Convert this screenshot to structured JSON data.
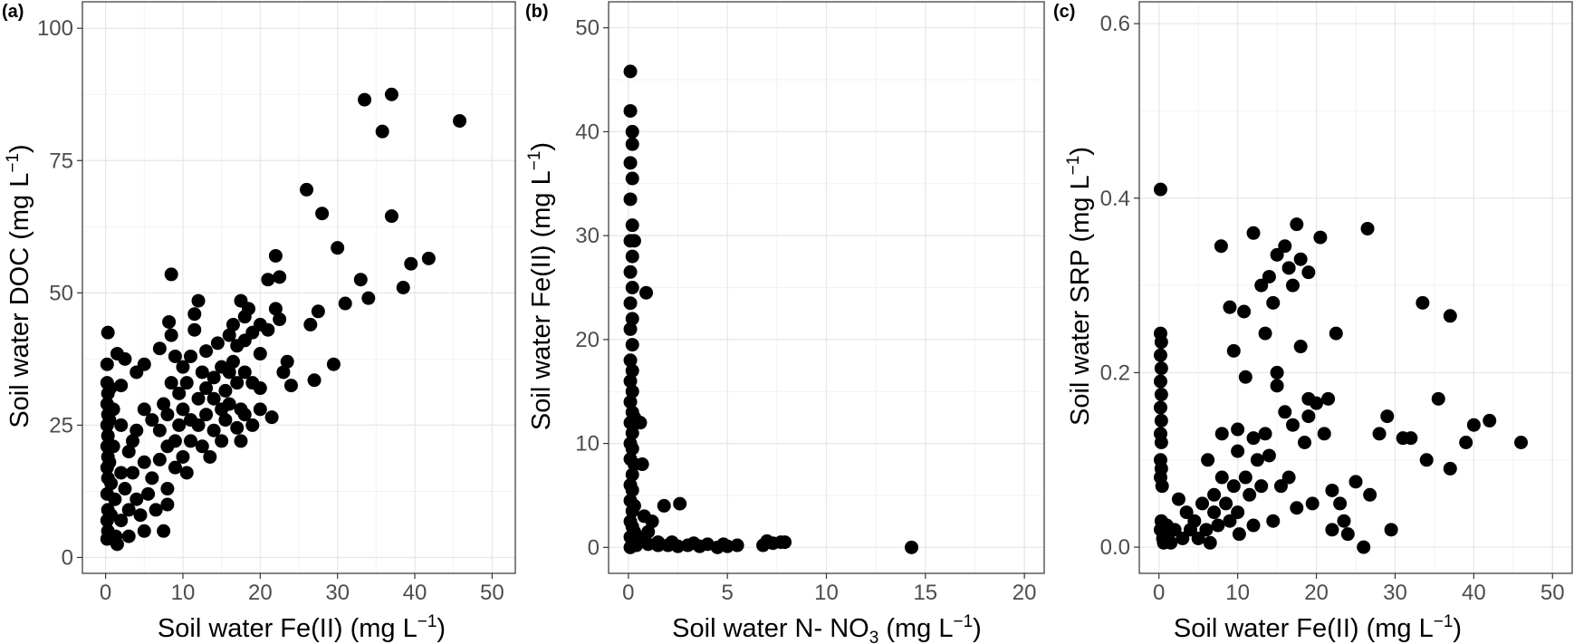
{
  "chart_data": [
    {
      "type": "scatter",
      "panel_label": "(a)",
      "title": "",
      "xlabel": "Soil water Fe(II) (mg  L",
      "xlabel_sup": "−1",
      "xlabel_tail": ")",
      "ylabel": "Soil water DOC (mg  L",
      "ylabel_sup": "−1",
      "ylabel_tail": ")",
      "xlim": [
        -3,
        53
      ],
      "ylim": [
        -3,
        105
      ],
      "xticks": [
        0,
        10,
        20,
        30,
        40,
        50
      ],
      "yticks": [
        0,
        25,
        50,
        75,
        100
      ],
      "xtick_labels": [
        "0",
        "10",
        "20",
        "30",
        "40",
        "50"
      ],
      "ytick_labels": [
        "0",
        "25",
        "50",
        "75",
        "100"
      ],
      "grid": true,
      "legend": "none",
      "marker_color": "#000000",
      "points": [
        [
          0.3,
          42.5
        ],
        [
          0.2,
          36.5
        ],
        [
          0.2,
          33
        ],
        [
          0.3,
          31
        ],
        [
          0.2,
          29
        ],
        [
          0.3,
          27
        ],
        [
          0.2,
          25
        ],
        [
          0.3,
          23
        ],
        [
          0.2,
          21
        ],
        [
          0.3,
          19
        ],
        [
          0.2,
          17
        ],
        [
          0.3,
          15
        ],
        [
          0.2,
          12
        ],
        [
          0.3,
          9
        ],
        [
          0.2,
          7
        ],
        [
          0.3,
          5
        ],
        [
          0.2,
          3.5
        ],
        [
          0.5,
          26
        ],
        [
          0.5,
          18
        ],
        [
          0.6,
          32
        ],
        [
          0.7,
          14
        ],
        [
          0.7,
          8
        ],
        [
          1,
          28
        ],
        [
          1,
          21
        ],
        [
          1.2,
          11
        ],
        [
          1.3,
          4
        ],
        [
          1.5,
          38.5
        ],
        [
          1.5,
          2.5
        ],
        [
          2,
          32.5
        ],
        [
          2,
          25
        ],
        [
          2,
          16
        ],
        [
          2,
          7
        ],
        [
          2.5,
          37.5
        ],
        [
          2.5,
          13
        ],
        [
          3,
          20
        ],
        [
          3,
          9
        ],
        [
          3,
          4
        ],
        [
          3.5,
          22
        ],
        [
          3.5,
          16
        ],
        [
          4,
          35
        ],
        [
          4,
          24
        ],
        [
          4,
          11
        ],
        [
          4.5,
          8
        ],
        [
          5,
          36.5
        ],
        [
          5,
          28
        ],
        [
          5,
          18
        ],
        [
          5,
          5
        ],
        [
          5.5,
          12
        ],
        [
          6,
          26
        ],
        [
          6,
          15
        ],
        [
          6.5,
          9
        ],
        [
          7,
          39.5
        ],
        [
          7,
          24
        ],
        [
          7,
          18.5
        ],
        [
          7.5,
          5
        ],
        [
          7.5,
          29
        ],
        [
          8,
          27
        ],
        [
          8,
          21
        ],
        [
          8,
          13
        ],
        [
          8,
          10
        ],
        [
          8.2,
          44.5
        ],
        [
          8.5,
          53.5
        ],
        [
          8.5,
          33
        ],
        [
          8.5,
          42
        ],
        [
          9,
          38
        ],
        [
          9,
          22
        ],
        [
          9,
          17
        ],
        [
          9.5,
          31
        ],
        [
          9.5,
          25
        ],
        [
          10,
          36
        ],
        [
          10,
          19
        ],
        [
          10,
          28
        ],
        [
          10.5,
          16
        ],
        [
          10.5,
          33
        ],
        [
          11,
          22
        ],
        [
          11,
          26
        ],
        [
          11,
          38
        ],
        [
          11.5,
          43
        ],
        [
          11.5,
          46
        ],
        [
          12,
          48.5
        ],
        [
          12,
          30
        ],
        [
          12,
          25
        ],
        [
          12.5,
          35
        ],
        [
          12.5,
          21
        ],
        [
          13,
          39
        ],
        [
          13,
          32
        ],
        [
          13,
          27
        ],
        [
          13.5,
          19
        ],
        [
          14,
          34
        ],
        [
          14,
          24
        ],
        [
          14,
          30
        ],
        [
          14.5,
          40.5
        ],
        [
          15,
          36
        ],
        [
          15,
          28
        ],
        [
          15,
          22
        ],
        [
          15.5,
          31.5
        ],
        [
          15.5,
          26
        ],
        [
          16,
          42
        ],
        [
          16,
          35
        ],
        [
          16,
          29
        ],
        [
          16.5,
          44
        ],
        [
          16.5,
          37
        ],
        [
          17,
          40
        ],
        [
          17,
          33
        ],
        [
          17,
          24.5
        ],
        [
          17.5,
          48.5
        ],
        [
          17.5,
          28
        ],
        [
          17.5,
          22
        ],
        [
          18,
          45.5
        ],
        [
          18,
          41
        ],
        [
          18,
          35
        ],
        [
          18,
          27
        ],
        [
          18.5,
          47
        ],
        [
          19,
          42.5
        ],
        [
          19,
          33
        ],
        [
          19,
          25
        ],
        [
          20,
          44
        ],
        [
          20,
          38.5
        ],
        [
          20,
          32
        ],
        [
          20,
          28
        ],
        [
          21,
          52.5
        ],
        [
          21,
          43
        ],
        [
          21.5,
          26.5
        ],
        [
          22,
          57
        ],
        [
          22,
          47
        ],
        [
          22.5,
          53
        ],
        [
          22.5,
          45
        ],
        [
          23,
          35
        ],
        [
          23.5,
          37
        ],
        [
          24,
          32.5
        ],
        [
          26,
          69.5
        ],
        [
          26.5,
          44
        ],
        [
          27,
          33.5
        ],
        [
          27.5,
          46.5
        ],
        [
          28,
          65
        ],
        [
          29.5,
          36.5
        ],
        [
          30,
          58.5
        ],
        [
          31,
          48
        ],
        [
          33,
          52.5
        ],
        [
          33.5,
          86.5
        ],
        [
          34,
          49
        ],
        [
          35.8,
          80.5
        ],
        [
          37,
          64.5
        ],
        [
          37,
          87.5
        ],
        [
          38.5,
          51
        ],
        [
          39.5,
          55.5
        ],
        [
          41.8,
          56.5
        ],
        [
          45.8,
          82.5
        ]
      ]
    },
    {
      "type": "scatter",
      "panel_label": "(b)",
      "title": "",
      "xlabel": "Soil water N- NO",
      "xlabel_sub": "3",
      "xlabel_tail": " (mg  L",
      "xlabel_sup": "−1",
      "xlabel_end": ")",
      "ylabel": "Soil water Fe(II) (mg  L",
      "ylabel_sup": "−1",
      "ylabel_tail": ")",
      "xlim": [
        -1,
        21
      ],
      "ylim": [
        -2.5,
        52.5
      ],
      "xticks": [
        0,
        5,
        10,
        15,
        20
      ],
      "yticks": [
        0,
        10,
        20,
        30,
        40,
        50
      ],
      "xtick_labels": [
        "0",
        "5",
        "10",
        "15",
        "20"
      ],
      "ytick_labels": [
        "0",
        "10",
        "20",
        "30",
        "40",
        "50"
      ],
      "grid": true,
      "legend": "none",
      "marker_color": "#000000",
      "points": [
        [
          0.1,
          45.8
        ],
        [
          0.1,
          42
        ],
        [
          0.2,
          40
        ],
        [
          0.2,
          38.8
        ],
        [
          0.1,
          37
        ],
        [
          0.2,
          35.5
        ],
        [
          0.1,
          33.5
        ],
        [
          0.2,
          31
        ],
        [
          0.1,
          29.5
        ],
        [
          0.3,
          29.5
        ],
        [
          0.2,
          28
        ],
        [
          0.1,
          26.5
        ],
        [
          0.2,
          25
        ],
        [
          0.1,
          23.5
        ],
        [
          0.2,
          22
        ],
        [
          0.1,
          21
        ],
        [
          0.2,
          19.5
        ],
        [
          0.1,
          18
        ],
        [
          0.2,
          17
        ],
        [
          0.1,
          16
        ],
        [
          0.2,
          15
        ],
        [
          0.1,
          14
        ],
        [
          0.2,
          13
        ],
        [
          0.1,
          12
        ],
        [
          0.3,
          12.5
        ],
        [
          0.2,
          11
        ],
        [
          0.1,
          10
        ],
        [
          0.2,
          9.5
        ],
        [
          0.1,
          8.5
        ],
        [
          0.3,
          8
        ],
        [
          0.2,
          7
        ],
        [
          0.1,
          6
        ],
        [
          0.2,
          5.5
        ],
        [
          0.1,
          4.5
        ],
        [
          0.3,
          4
        ],
        [
          0.2,
          3.5
        ],
        [
          0.1,
          2.5
        ],
        [
          0.2,
          2
        ],
        [
          0.3,
          1.5
        ],
        [
          0.1,
          1
        ],
        [
          0.2,
          0.5
        ],
        [
          0.1,
          0
        ],
        [
          0.4,
          0.2
        ],
        [
          0.5,
          1
        ],
        [
          0.6,
          12
        ],
        [
          0.7,
          8
        ],
        [
          0.9,
          24.5
        ],
        [
          0.8,
          3
        ],
        [
          1,
          0.3
        ],
        [
          1,
          1.5
        ],
        [
          1.2,
          2.5
        ],
        [
          1.5,
          0.2
        ],
        [
          1.5,
          0.5
        ],
        [
          1.8,
          4
        ],
        [
          2,
          0.2
        ],
        [
          2.2,
          0.5
        ],
        [
          2.6,
          4.2
        ],
        [
          2.5,
          0.1
        ],
        [
          3,
          0.2
        ],
        [
          3.3,
          0.4
        ],
        [
          3.6,
          0.1
        ],
        [
          4,
          0.3
        ],
        [
          4.5,
          0
        ],
        [
          4.8,
          0.3
        ],
        [
          5,
          0.1
        ],
        [
          5.5,
          0.2
        ],
        [
          6.8,
          0.2
        ],
        [
          7,
          0.6
        ],
        [
          7.3,
          0.4
        ],
        [
          7.7,
          0.5
        ],
        [
          7.9,
          0.5
        ],
        [
          14.3,
          0
        ]
      ]
    },
    {
      "type": "scatter",
      "panel_label": "(c)",
      "title": "",
      "xlabel": "Soil water Fe(II) (mg  L",
      "xlabel_sup": "−1",
      "xlabel_tail": ")",
      "ylabel": "Soil water SRP (mg  L",
      "ylabel_sup": "−1",
      "ylabel_tail": ")",
      "xlim": [
        -2.5,
        52.5
      ],
      "ylim": [
        -0.03,
        0.625
      ],
      "xticks": [
        0,
        10,
        20,
        30,
        40,
        50
      ],
      "yticks": [
        0.0,
        0.2,
        0.4,
        0.6
      ],
      "xtick_labels": [
        "0",
        "10",
        "20",
        "30",
        "40",
        "50"
      ],
      "ytick_labels": [
        "0.0",
        "0.2",
        "0.4",
        "0.6"
      ],
      "grid": true,
      "legend": "none",
      "marker_color": "#000000",
      "points": [
        [
          0.2,
          0.41
        ],
        [
          0.2,
          0.245
        ],
        [
          0.3,
          0.235
        ],
        [
          0.2,
          0.22
        ],
        [
          0.3,
          0.205
        ],
        [
          0.2,
          0.19
        ],
        [
          0.3,
          0.175
        ],
        [
          0.2,
          0.16
        ],
        [
          0.3,
          0.145
        ],
        [
          0.2,
          0.13
        ],
        [
          0.3,
          0.12
        ],
        [
          0.2,
          0.1
        ],
        [
          0.3,
          0.09
        ],
        [
          0.2,
          0.08
        ],
        [
          0.4,
          0.07
        ],
        [
          0.3,
          0.03
        ],
        [
          0.2,
          0.02
        ],
        [
          0.5,
          0.01
        ],
        [
          0.6,
          0.005
        ],
        [
          1,
          0.025
        ],
        [
          1.2,
          0.015
        ],
        [
          1.5,
          0.005
        ],
        [
          2,
          0.02
        ],
        [
          2.5,
          0.055
        ],
        [
          3,
          0.01
        ],
        [
          3.5,
          0.04
        ],
        [
          4,
          0.02
        ],
        [
          4.5,
          0.03
        ],
        [
          5,
          0.01
        ],
        [
          5.5,
          0.05
        ],
        [
          6,
          0.02
        ],
        [
          6.2,
          0.1
        ],
        [
          6.5,
          0.005
        ],
        [
          7,
          0.04
        ],
        [
          7,
          0.06
        ],
        [
          7.5,
          0.025
        ],
        [
          7.9,
          0.345
        ],
        [
          8,
          0.13
        ],
        [
          8,
          0.08
        ],
        [
          8.5,
          0.05
        ],
        [
          9,
          0.275
        ],
        [
          9,
          0.03
        ],
        [
          9.5,
          0.225
        ],
        [
          9.5,
          0.07
        ],
        [
          10,
          0.135
        ],
        [
          10,
          0.11
        ],
        [
          10,
          0.04
        ],
        [
          10.2,
          0.015
        ],
        [
          10.8,
          0.27
        ],
        [
          11,
          0.195
        ],
        [
          11,
          0.08
        ],
        [
          11.5,
          0.06
        ],
        [
          12,
          0.36
        ],
        [
          12,
          0.125
        ],
        [
          12,
          0.025
        ],
        [
          12.5,
          0.1
        ],
        [
          13,
          0.3
        ],
        [
          13,
          0.07
        ],
        [
          13.5,
          0.245
        ],
        [
          13.5,
          0.13
        ],
        [
          14,
          0.31
        ],
        [
          14,
          0.105
        ],
        [
          14.5,
          0.28
        ],
        [
          14.5,
          0.03
        ],
        [
          15,
          0.335
        ],
        [
          15,
          0.2
        ],
        [
          15,
          0.185
        ],
        [
          15.5,
          0.07
        ],
        [
          16,
          0.345
        ],
        [
          16,
          0.155
        ],
        [
          16.5,
          0.32
        ],
        [
          16.5,
          0.08
        ],
        [
          17,
          0.3
        ],
        [
          17,
          0.14
        ],
        [
          17.5,
          0.37
        ],
        [
          17.5,
          0.045
        ],
        [
          18,
          0.33
        ],
        [
          18,
          0.23
        ],
        [
          18.5,
          0.12
        ],
        [
          19,
          0.315
        ],
        [
          19,
          0.17
        ],
        [
          19,
          0.15
        ],
        [
          19.5,
          0.05
        ],
        [
          20,
          0.165
        ],
        [
          20.5,
          0.355
        ],
        [
          21,
          0.13
        ],
        [
          21.5,
          0.17
        ],
        [
          22,
          0.065
        ],
        [
          22,
          0.02
        ],
        [
          22.5,
          0.245
        ],
        [
          23,
          0.05
        ],
        [
          23.5,
          0.03
        ],
        [
          24,
          0.015
        ],
        [
          25,
          0.075
        ],
        [
          26.5,
          0.365
        ],
        [
          26,
          0
        ],
        [
          26.8,
          0.06
        ],
        [
          28,
          0.13
        ],
        [
          29,
          0.15
        ],
        [
          29.5,
          0.02
        ],
        [
          31,
          0.125
        ],
        [
          32,
          0.125
        ],
        [
          33.5,
          0.28
        ],
        [
          34,
          0.1
        ],
        [
          35.5,
          0.17
        ],
        [
          37,
          0.265
        ],
        [
          37,
          0.09
        ],
        [
          39,
          0.12
        ],
        [
          40,
          0.14
        ],
        [
          42,
          0.145
        ],
        [
          46,
          0.12
        ]
      ]
    }
  ]
}
